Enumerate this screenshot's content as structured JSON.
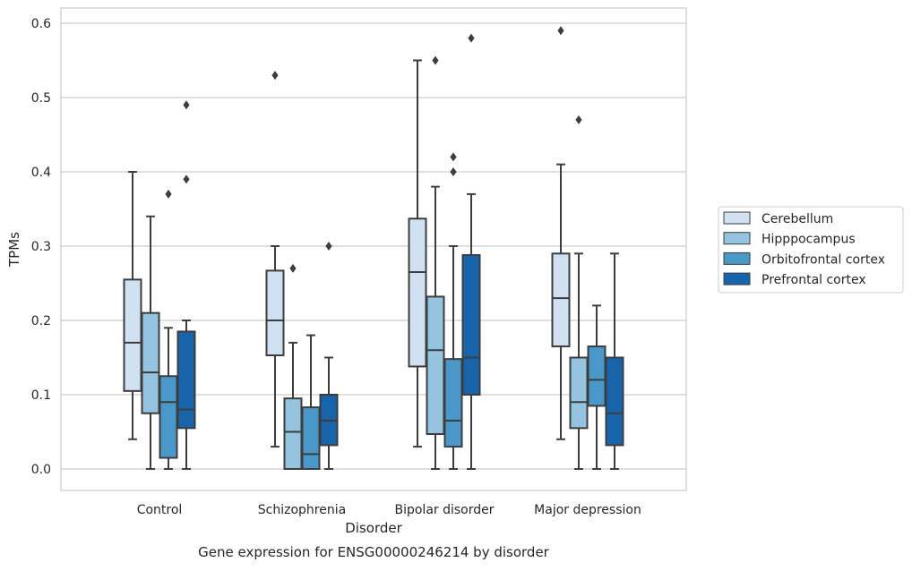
{
  "chart_data": {
    "type": "boxplot",
    "title": "",
    "caption": "Gene expression for ENSG00000246214 by disorder",
    "xlabel": "Disorder",
    "ylabel": "TPMs",
    "ylim": [
      -0.028,
      0.62
    ],
    "yticks": [
      0.0,
      0.1,
      0.2,
      0.3,
      0.4,
      0.5,
      0.6
    ],
    "ytick_labels": [
      "0.0",
      "0.1",
      "0.2",
      "0.3",
      "0.4",
      "0.5",
      "0.6"
    ],
    "grid": "horizontal",
    "legend_position": "outside-right",
    "categories": [
      "Control",
      "Schizophrenia",
      "Bipolar disorder",
      "Major depression"
    ],
    "series": [
      {
        "name": "Cerebellum",
        "color": "#d0e1f2",
        "boxes": [
          {
            "whisker_low": 0.04,
            "q1": 0.105,
            "median": 0.17,
            "q3": 0.255,
            "whisker_high": 0.4,
            "outliers": []
          },
          {
            "whisker_low": 0.03,
            "q1": 0.153,
            "median": 0.2,
            "q3": 0.267,
            "whisker_high": 0.3,
            "outliers": [
              0.53
            ]
          },
          {
            "whisker_low": 0.03,
            "q1": 0.138,
            "median": 0.265,
            "q3": 0.337,
            "whisker_high": 0.55,
            "outliers": []
          },
          {
            "whisker_low": 0.04,
            "q1": 0.165,
            "median": 0.23,
            "q3": 0.29,
            "whisker_high": 0.41,
            "outliers": [
              0.59
            ]
          }
        ]
      },
      {
        "name": "Hipppocampus",
        "color": "#94c4df",
        "boxes": [
          {
            "whisker_low": 0.0,
            "q1": 0.075,
            "median": 0.13,
            "q3": 0.21,
            "whisker_high": 0.34,
            "outliers": []
          },
          {
            "whisker_low": 0.0,
            "q1": 0.0,
            "median": 0.05,
            "q3": 0.095,
            "whisker_high": 0.17,
            "outliers": [
              0.27
            ]
          },
          {
            "whisker_low": 0.0,
            "q1": 0.047,
            "median": 0.16,
            "q3": 0.232,
            "whisker_high": 0.38,
            "outliers": [
              0.55
            ]
          },
          {
            "whisker_low": 0.0,
            "q1": 0.055,
            "median": 0.09,
            "q3": 0.15,
            "whisker_high": 0.29,
            "outliers": [
              0.47
            ]
          }
        ]
      },
      {
        "name": "Orbitofrontal cortex",
        "color": "#4a98c9",
        "boxes": [
          {
            "whisker_low": 0.0,
            "q1": 0.015,
            "median": 0.09,
            "q3": 0.125,
            "whisker_high": 0.19,
            "outliers": [
              0.37
            ]
          },
          {
            "whisker_low": 0.0,
            "q1": 0.0,
            "median": 0.02,
            "q3": 0.083,
            "whisker_high": 0.18,
            "outliers": []
          },
          {
            "whisker_low": 0.0,
            "q1": 0.03,
            "median": 0.065,
            "q3": 0.148,
            "whisker_high": 0.3,
            "outliers": [
              0.4,
              0.42
            ]
          },
          {
            "whisker_low": 0.0,
            "q1": 0.085,
            "median": 0.12,
            "q3": 0.165,
            "whisker_high": 0.22,
            "outliers": []
          }
        ]
      },
      {
        "name": "Prefrontal cortex",
        "color": "#1764ab",
        "boxes": [
          {
            "whisker_low": 0.0,
            "q1": 0.055,
            "median": 0.08,
            "q3": 0.185,
            "whisker_high": 0.2,
            "outliers": [
              0.39,
              0.49
            ]
          },
          {
            "whisker_low": 0.0,
            "q1": 0.032,
            "median": 0.065,
            "q3": 0.1,
            "whisker_high": 0.15,
            "outliers": [
              0.3
            ]
          },
          {
            "whisker_low": 0.0,
            "q1": 0.1,
            "median": 0.15,
            "q3": 0.288,
            "whisker_high": 0.37,
            "outliers": [
              0.58
            ]
          },
          {
            "whisker_low": 0.0,
            "q1": 0.032,
            "median": 0.075,
            "q3": 0.15,
            "whisker_high": 0.29,
            "outliers": []
          }
        ]
      }
    ],
    "colors": {
      "edge": "#3d3d3d",
      "grid": "#cccccc",
      "frame": "#cccccc",
      "background": "#ffffff"
    }
  }
}
